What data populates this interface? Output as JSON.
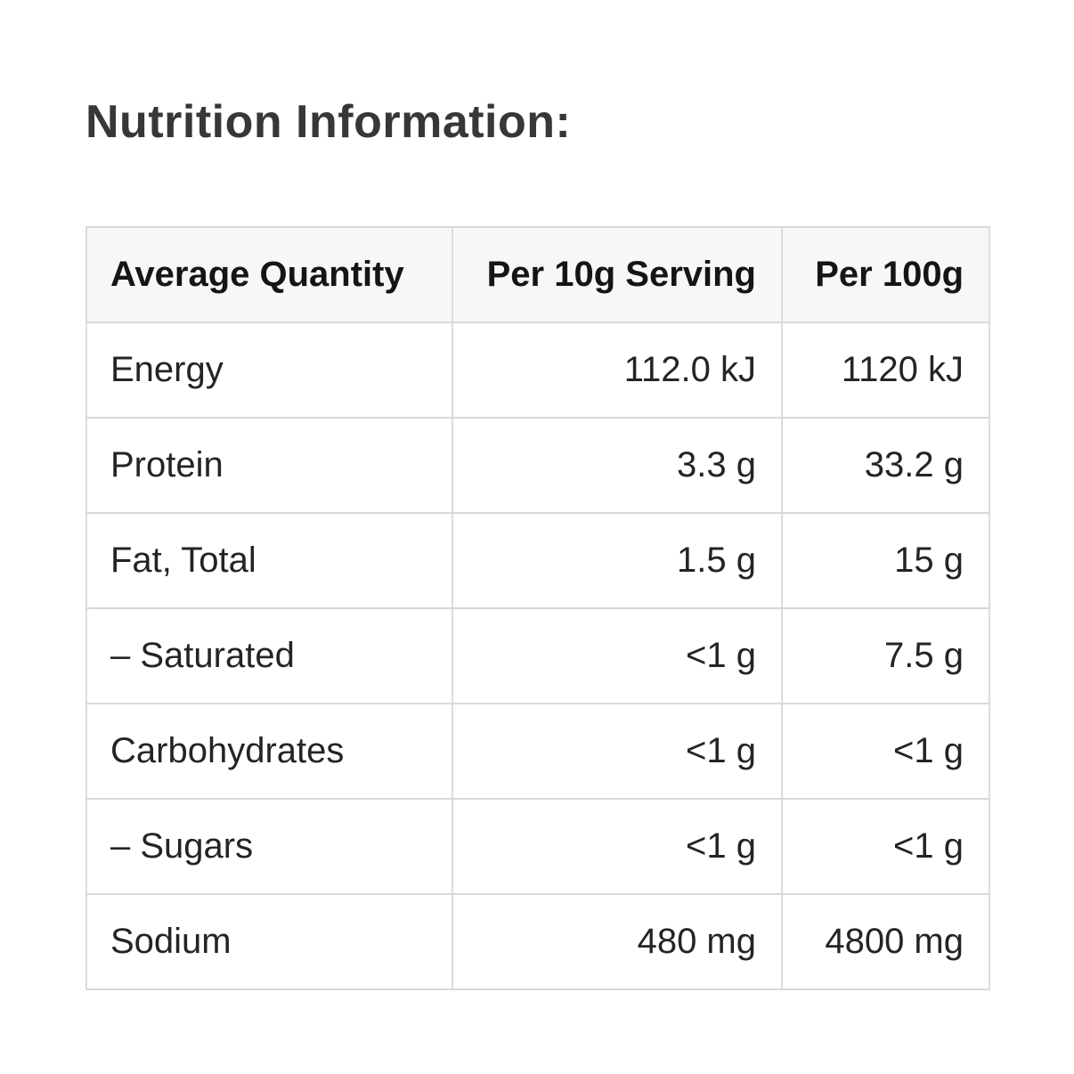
{
  "section": {
    "title": "Nutrition Information:"
  },
  "table": {
    "columns": [
      {
        "label": "Average Quantity",
        "align": "left"
      },
      {
        "label": "Per 10g Serving",
        "align": "right"
      },
      {
        "label": "Per 100g",
        "align": "right"
      }
    ],
    "rows": [
      {
        "nutrient": "Energy",
        "per_serving": "112.0 kJ",
        "per_100g": "1120 kJ"
      },
      {
        "nutrient": "Protein",
        "per_serving": "3.3 g",
        "per_100g": "33.2 g"
      },
      {
        "nutrient": "Fat, Total",
        "per_serving": "1.5 g",
        "per_100g": "15 g"
      },
      {
        "nutrient": "– Saturated",
        "per_serving": "<1 g",
        "per_100g": "7.5 g"
      },
      {
        "nutrient": "Carbohydrates",
        "per_serving": "<1 g",
        "per_100g": "<1 g"
      },
      {
        "nutrient": "– Sugars",
        "per_serving": "<1 g",
        "per_100g": "<1 g"
      },
      {
        "nutrient": "Sodium",
        "per_serving": "480 mg",
        "per_100g": "4800 mg"
      }
    ]
  },
  "colors": {
    "page_bg": "#ffffff",
    "header_bg": "#f7f7f7",
    "grid_border": "#dcdcdc",
    "title_text": "#373737",
    "header_text": "#151515",
    "body_text": "#242424"
  }
}
